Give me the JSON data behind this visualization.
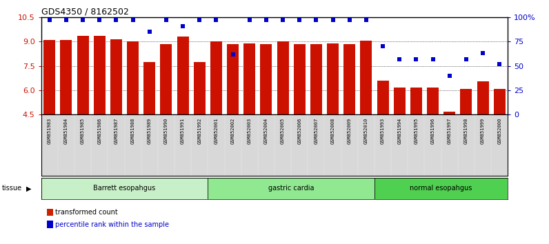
{
  "title": "GDS4350 / 8162502",
  "samples": [
    "GSM851983",
    "GSM851984",
    "GSM851985",
    "GSM851986",
    "GSM851987",
    "GSM851988",
    "GSM851989",
    "GSM851990",
    "GSM851991",
    "GSM851992",
    "GSM852001",
    "GSM852002",
    "GSM852003",
    "GSM852004",
    "GSM852005",
    "GSM852006",
    "GSM852007",
    "GSM852008",
    "GSM852009",
    "GSM852010",
    "GSM851993",
    "GSM851994",
    "GSM851995",
    "GSM851996",
    "GSM851997",
    "GSM851998",
    "GSM851999",
    "GSM852000"
  ],
  "bar_values": [
    9.1,
    9.1,
    9.35,
    9.35,
    9.15,
    9.0,
    7.75,
    8.85,
    9.3,
    7.75,
    9.0,
    8.85,
    8.9,
    8.85,
    9.0,
    8.85,
    8.85,
    8.9,
    8.85,
    9.05,
    6.6,
    6.15,
    6.15,
    6.15,
    4.7,
    6.1,
    6.55,
    6.1
  ],
  "dot_values": [
    97,
    97,
    97,
    97,
    97,
    97,
    85,
    97,
    91,
    97,
    97,
    62,
    97,
    97,
    97,
    97,
    97,
    97,
    97,
    97,
    70,
    57,
    57,
    57,
    40,
    57,
    63,
    52
  ],
  "tissue_groups": [
    {
      "label": "Barrett esopahgus",
      "start": 0,
      "end": 10,
      "color": "#c8f0c8"
    },
    {
      "label": "gastric cardia",
      "start": 10,
      "end": 20,
      "color": "#90e890"
    },
    {
      "label": "normal esopahgus",
      "start": 20,
      "end": 28,
      "color": "#50d050"
    }
  ],
  "ylim_left": [
    4.5,
    10.5
  ],
  "ylim_right": [
    0,
    100
  ],
  "bar_color": "#cc1100",
  "dot_color": "#0000cc",
  "grid_yticks_left": [
    4.5,
    6.0,
    7.5,
    9.0,
    10.5
  ],
  "grid_yticks_right": [
    0,
    25,
    50,
    75,
    100
  ],
  "bar_baseline": 4.5,
  "xlabel_color": "#cc1100",
  "ylabel_right_color": "#0000cc",
  "background_color": "#ffffff",
  "xtick_bg_color": "#d8d8d8",
  "xtick_fontsize": 5.5,
  "legend_bar_color": "#cc2200",
  "legend_dot_color": "#0000cc"
}
